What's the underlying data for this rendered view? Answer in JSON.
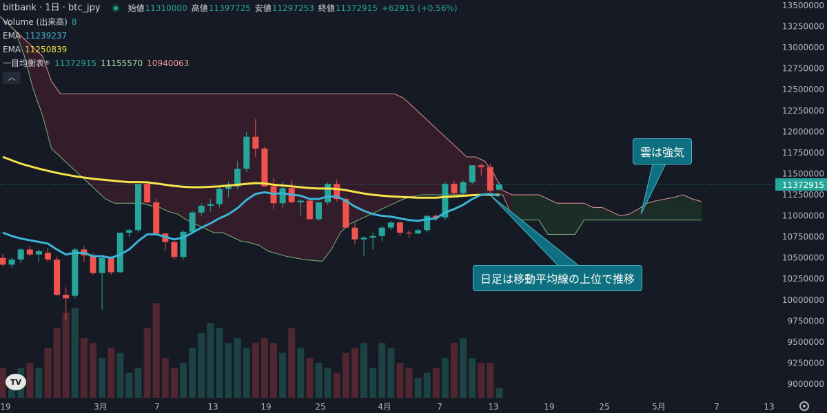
{
  "header": {
    "symbol": "bitbank · 1日 · btc_jpy",
    "open_label": "始値",
    "open": "11310000",
    "high_label": "高値",
    "high": "11397725",
    "low_label": "安値",
    "low": "11297253",
    "close_label": "終値",
    "close": "11372915",
    "change": "+62915 (+0.56%)",
    "volume_label": "Volume (出来高)",
    "volume": "8",
    "ema1_label": "EMA",
    "ema1": "11239237",
    "ema2_label": "EMA",
    "ema2": "11250839",
    "ichimoku_label": "一目均衡表",
    "ich1": "11372915",
    "ich2": "11155570",
    "ich3": "10940063"
  },
  "callouts": {
    "cloud": "雲は強気",
    "price": "日足は移動平均線の上位で推移"
  },
  "colors": {
    "up": "#26a69a",
    "down": "#ef5350",
    "ema_slow": "#f7e44a",
    "ema_fast": "#3cb4d8",
    "cloud_bear": "#3b1f2b",
    "cloud_bull": "#1f3a2b"
  },
  "chart_data": {
    "type": "candlestick",
    "y_ticks": [
      "13500000",
      "13250000",
      "13000000",
      "12750000",
      "12500000",
      "12250000",
      "12000000",
      "11750000",
      "11500000",
      "11250000",
      "11000000",
      "10750000",
      "10500000",
      "10250000",
      "10000000",
      "9750000",
      "9500000",
      "9250000",
      "9000000"
    ],
    "x_ticks": [
      "19",
      "3月",
      "7",
      "13",
      "19",
      "25",
      "4月",
      "7",
      "13",
      "19",
      "25",
      "5月",
      "7",
      "13"
    ],
    "last_price": "11372915",
    "ylim": [
      8900000,
      13550000
    ],
    "candles": [
      [
        10500000,
        10550000,
        10400000,
        10420000
      ],
      [
        10420000,
        10500000,
        10380000,
        10480000
      ],
      [
        10480000,
        10620000,
        10440000,
        10600000
      ],
      [
        10600000,
        10640000,
        10520000,
        10540000
      ],
      [
        10540000,
        10600000,
        10450000,
        10580000
      ],
      [
        10560000,
        10620000,
        10450000,
        10480000
      ],
      [
        10480000,
        10520000,
        10050000,
        10060000
      ],
      [
        10060000,
        10150000,
        9760000,
        10020000
      ],
      [
        10050000,
        10620000,
        10020000,
        10600000
      ],
      [
        10600000,
        10640000,
        10450000,
        10530000
      ],
      [
        10530000,
        10560000,
        10300000,
        10320000
      ],
      [
        10320000,
        10520000,
        9880000,
        10500000
      ],
      [
        10500000,
        10520000,
        10300000,
        10330000
      ],
      [
        10330000,
        10800000,
        10320000,
        10800000
      ],
      [
        10800000,
        10850000,
        10750000,
        10830000
      ],
      [
        10830000,
        11380000,
        10800000,
        11380000
      ],
      [
        11380000,
        11400000,
        11150000,
        11160000
      ],
      [
        11160000,
        11200000,
        10780000,
        10790000
      ],
      [
        10790000,
        10800000,
        10580000,
        10690000
      ],
      [
        10690000,
        10700000,
        10480000,
        10510000
      ],
      [
        10510000,
        10830000,
        10480000,
        10810000
      ],
      [
        10810000,
        11060000,
        10790000,
        11040000
      ],
      [
        11040000,
        11150000,
        11000000,
        11120000
      ],
      [
        11120000,
        11200000,
        11050000,
        11140000
      ],
      [
        11140000,
        11350000,
        11100000,
        11320000
      ],
      [
        11320000,
        11400000,
        11220000,
        11350000
      ],
      [
        11350000,
        11650000,
        11320000,
        11560000
      ],
      [
        11560000,
        12000000,
        11520000,
        11940000
      ],
      [
        11940000,
        12150000,
        11700000,
        11800000
      ],
      [
        11800000,
        11820000,
        11350000,
        11350000
      ],
      [
        11350000,
        11450000,
        11080000,
        11150000
      ],
      [
        11150000,
        11400000,
        11100000,
        11330000
      ],
      [
        11330000,
        11430000,
        11150000,
        11160000
      ],
      [
        11160000,
        11200000,
        11000000,
        11180000
      ],
      [
        11180000,
        11200000,
        10950000,
        10960000
      ],
      [
        10960000,
        11160000,
        10940000,
        11160000
      ],
      [
        11160000,
        11400000,
        11130000,
        11380000
      ],
      [
        11380000,
        11430000,
        11170000,
        11200000
      ],
      [
        11200000,
        11220000,
        10860000,
        10860000
      ],
      [
        10860000,
        10920000,
        10660000,
        10720000
      ],
      [
        10720000,
        10760000,
        10520000,
        10740000
      ],
      [
        10740000,
        10800000,
        10600000,
        10760000
      ],
      [
        10760000,
        10880000,
        10700000,
        10860000
      ],
      [
        10860000,
        10940000,
        10830000,
        10920000
      ],
      [
        10920000,
        10940000,
        10760000,
        10800000
      ],
      [
        10800000,
        10830000,
        10740000,
        10790000
      ],
      [
        10790000,
        10850000,
        10780000,
        10830000
      ],
      [
        10830000,
        11000000,
        10800000,
        11000000
      ],
      [
        11000000,
        11020000,
        10940000,
        10980000
      ],
      [
        10980000,
        11400000,
        10950000,
        11380000
      ],
      [
        11380000,
        11420000,
        11220000,
        11270000
      ],
      [
        11270000,
        11420000,
        11240000,
        11400000
      ],
      [
        11400000,
        11600000,
        11380000,
        11600000
      ],
      [
        11600000,
        11620000,
        11480000,
        11580000
      ],
      [
        11580000,
        11620000,
        11280000,
        11300000
      ],
      [
        11310000,
        11397725,
        11297253,
        11372915
      ]
    ],
    "ema_slow": [
      11700000,
      11660000,
      11620000,
      11590000,
      11560000,
      11535000,
      11510000,
      11490000,
      11470000,
      11455000,
      11440000,
      11430000,
      11420000,
      11410000,
      11400000,
      11400000,
      11398000,
      11385000,
      11370000,
      11355000,
      11345000,
      11340000,
      11340000,
      11345000,
      11350000,
      11360000,
      11370000,
      11380000,
      11390000,
      11385000,
      11370000,
      11360000,
      11350000,
      11340000,
      11330000,
      11325000,
      11325000,
      11320000,
      11305000,
      11285000,
      11265000,
      11250000,
      11240000,
      11232000,
      11225000,
      11220000,
      11215000,
      11215000,
      11215000,
      11225000,
      11230000,
      11238000,
      11245000,
      11250000,
      11250000,
      11250839
    ],
    "ema_fast": [
      10800000,
      10760000,
      10730000,
      10710000,
      10690000,
      10670000,
      10600000,
      10540000,
      10560000,
      10560000,
      10520000,
      10520000,
      10500000,
      10540000,
      10600000,
      10700000,
      10780000,
      10780000,
      10750000,
      10720000,
      10740000,
      10800000,
      10860000,
      10910000,
      10970000,
      11020000,
      11090000,
      11190000,
      11260000,
      11280000,
      11260000,
      11270000,
      11250000,
      11240000,
      11200000,
      11200000,
      11230000,
      11230000,
      11180000,
      11110000,
      11060000,
      11020000,
      11000000,
      10990000,
      10970000,
      10950000,
      10940000,
      10960000,
      10970000,
      11040000,
      11080000,
      11130000,
      11200000,
      11250000,
      11260000,
      11239237
    ],
    "cloud_upper": [
      13400000,
      13300000,
      13200000,
      13100000,
      13000000,
      12900000,
      12600000,
      12450000,
      12450000,
      12450000,
      12450000,
      12450000,
      12450000,
      12450000,
      12450000,
      12450000,
      12450000,
      12450000,
      12450000,
      12450000,
      12450000,
      12450000,
      12450000,
      12450000,
      12450000,
      12450000,
      12450000,
      12450000,
      12450000,
      12450000,
      12450000,
      12450000,
      12450000,
      12450000,
      12450000,
      12450000,
      12450000,
      12450000,
      12450000,
      12450000,
      12450000,
      12450000,
      12450000,
      12450000,
      12450000,
      12400000,
      12300000,
      12200000,
      12100000,
      12000000,
      11900000,
      11800000,
      11700000,
      11700000,
      11650000,
      11500000,
      11300000,
      11250000,
      11250000,
      11250000,
      11250000,
      11200000,
      11150000,
      11150000,
      11150000,
      11150000,
      11100000,
      11100000,
      11050000,
      11000000,
      11020000,
      11080000,
      11150000,
      11180000,
      11200000,
      11220000,
      11250000,
      11200000,
      11170000
    ],
    "cloud_lower": [
      13400000,
      13300000,
      13200000,
      12900000,
      12500000,
      12200000,
      11800000,
      11700000,
      11600000,
      11500000,
      11400000,
      11300000,
      11200000,
      11150000,
      11150000,
      11150000,
      11150000,
      11120000,
      11100000,
      11050000,
      11020000,
      10950000,
      10900000,
      10850000,
      10800000,
      10800000,
      10750000,
      10700000,
      10680000,
      10650000,
      10580000,
      10550000,
      10520000,
      10500000,
      10480000,
      10470000,
      10460000,
      10600000,
      10800000,
      10900000,
      10950000,
      11000000,
      11050000,
      11100000,
      11150000,
      11200000,
      11230000,
      11250000,
      11250000,
      11250000,
      11250000,
      11250000,
      11250000,
      11250000,
      11250000,
      11250000,
      11250000,
      11000000,
      10950000,
      10950000,
      10950000,
      10780000,
      10780000,
      10780000,
      10780000,
      10950000,
      10950000,
      10950000,
      10950000,
      10950000,
      10950000,
      10950000,
      10950000,
      10950000,
      10950000,
      10950000,
      10950000,
      10950000,
      10950000
    ],
    "volume": [
      0.3,
      0.2,
      0.3,
      0.35,
      0.3,
      0.5,
      0.7,
      0.85,
      0.9,
      0.6,
      0.55,
      0.4,
      0.5,
      0.45,
      0.25,
      0.3,
      0.7,
      0.95,
      0.4,
      0.3,
      0.35,
      0.5,
      0.65,
      0.75,
      0.7,
      0.55,
      0.6,
      0.5,
      0.55,
      0.6,
      0.55,
      0.45,
      0.7,
      0.5,
      0.4,
      0.35,
      0.3,
      0.25,
      0.45,
      0.5,
      0.55,
      0.3,
      0.55,
      0.5,
      0.35,
      0.3,
      0.2,
      0.25,
      0.3,
      0.4,
      0.55,
      0.6,
      0.4,
      0.35,
      0.35,
      0.1
    ]
  }
}
